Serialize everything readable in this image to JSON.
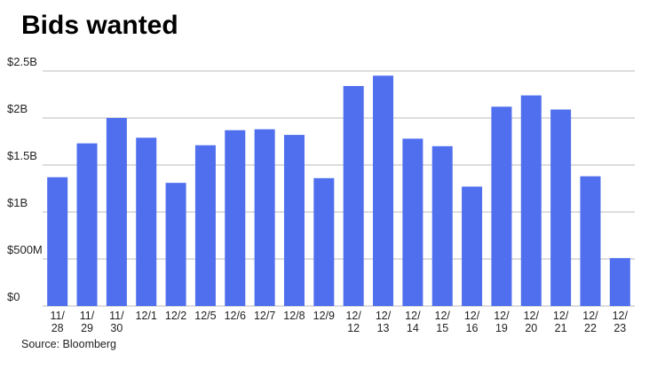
{
  "chart_data": {
    "type": "bar",
    "title": "Bids wanted",
    "source": "Source: Bloomberg",
    "categories": [
      "11/\n28",
      "11/\n29",
      "11/\n30",
      "12/1",
      "12/2",
      "12/5",
      "12/6",
      "12/7",
      "12/8",
      "12/9",
      "12/\n12",
      "12/\n13",
      "12/\n14",
      "12/\n15",
      "12/\n16",
      "12/\n19",
      "12/\n20",
      "12/\n21",
      "12/\n22",
      "12/\n23"
    ],
    "values": [
      1.37,
      1.73,
      2.0,
      1.79,
      1.31,
      1.71,
      1.87,
      1.88,
      1.82,
      1.36,
      2.34,
      2.45,
      1.78,
      1.7,
      1.27,
      2.12,
      2.24,
      2.09,
      1.38,
      0.51
    ],
    "color": "#4f6fee",
    "ylim": [
      0,
      2.5
    ],
    "yticks": [
      {
        "value": 0,
        "label": "$0"
      },
      {
        "value": 0.5,
        "label": "$500M"
      },
      {
        "value": 1,
        "label": "$1B"
      },
      {
        "value": 1.5,
        "label": "$1.5B"
      },
      {
        "value": 2,
        "label": "$2B"
      },
      {
        "value": 2.5,
        "label": "$2.5B"
      }
    ],
    "grid": true
  }
}
